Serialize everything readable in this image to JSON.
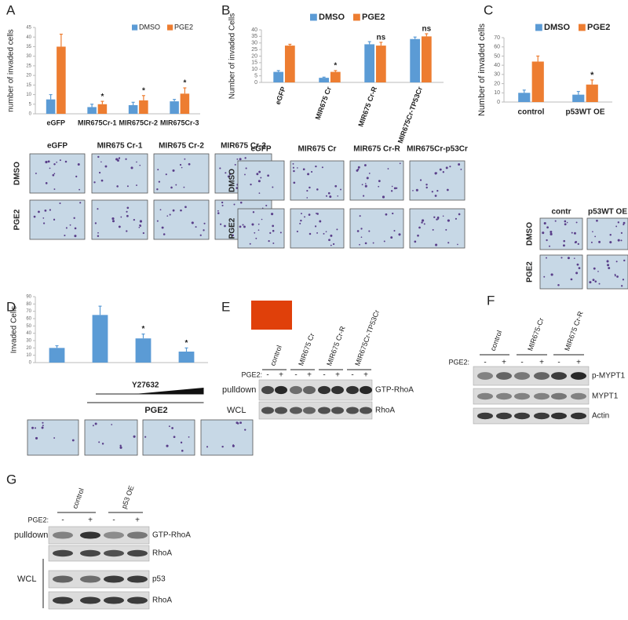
{
  "panel_letters": [
    "A",
    "B",
    "C",
    "D",
    "E",
    "F",
    "G"
  ],
  "chart_data": [
    {
      "type": "bar",
      "y_label": "number of invaded cells",
      "categories": [
        "eGFP",
        "MIR675Cr-1",
        "MIR675Cr-2",
        "MIR675Cr-3"
      ],
      "series": [
        {
          "name": "DMSO",
          "color": "#5b9bd5",
          "values": [
            7.5,
            3.5,
            4.5,
            6.5
          ],
          "errors": [
            2.5,
            1.5,
            1.5,
            1
          ]
        },
        {
          "name": "PGE2",
          "color": "#ed7d31",
          "values": [
            35,
            5,
            7,
            10.5
          ],
          "errors": [
            6.5,
            1.5,
            2.5,
            3
          ]
        }
      ],
      "significance": [
        null,
        "*",
        "*",
        "*"
      ],
      "ylim": [
        0,
        45
      ],
      "yticks": [
        0,
        5,
        10,
        15,
        20,
        25,
        30,
        35,
        40,
        45
      ],
      "grid": false,
      "legend": "top-right"
    },
    {
      "type": "bar",
      "y_label": "Number of invaded Cells",
      "categories": [
        "eGFP",
        "MIR675 Cr",
        "MIR675 Cr-R",
        "MIR675Cr-TP53Cr"
      ],
      "series": [
        {
          "name": "DMSO",
          "color": "#5b9bd5",
          "values": [
            8,
            3.5,
            29,
            33
          ],
          "errors": [
            1,
            0.5,
            2,
            1.5
          ]
        },
        {
          "name": "PGE2",
          "color": "#ed7d31",
          "values": [
            28,
            8,
            28,
            35
          ],
          "errors": [
            1,
            1,
            2.5,
            2
          ]
        }
      ],
      "significance": [
        null,
        "*",
        "ns",
        "ns"
      ],
      "ylim": [
        0,
        40
      ],
      "yticks": [
        0,
        5,
        10,
        15,
        20,
        25,
        30,
        35,
        40
      ],
      "grid": false,
      "legend": "top"
    },
    {
      "type": "bar",
      "y_label": "Number of invaded cells",
      "categories": [
        "control",
        "p53WT OE"
      ],
      "series": [
        {
          "name": "DMSO",
          "color": "#5b9bd5",
          "values": [
            10,
            8
          ],
          "errors": [
            3,
            3.5
          ]
        },
        {
          "name": "PGE2",
          "color": "#ed7d31",
          "values": [
            44,
            19
          ],
          "errors": [
            6,
            5
          ]
        }
      ],
      "significance": [
        null,
        "*"
      ],
      "ylim": [
        0,
        70
      ],
      "yticks": [
        0,
        10,
        20,
        30,
        40,
        50,
        60,
        70
      ],
      "grid": false,
      "legend": "top"
    },
    {
      "type": "bar",
      "y_label": "Invaded Cells",
      "categories": [
        null,
        null,
        null,
        null
      ],
      "values": [
        20,
        65,
        33,
        15
      ],
      "errors": [
        3,
        12,
        6,
        5
      ],
      "color": "#5b9bd5",
      "significance": [
        null,
        null,
        "*",
        "*"
      ],
      "group_label": "PGE2",
      "gradient_label": "Y27632",
      "ylim": [
        0,
        90
      ],
      "yticks": [
        0,
        10,
        20,
        30,
        40,
        50,
        60,
        70,
        80,
        90
      ],
      "grid": false
    }
  ],
  "micrographs": {
    "A": {
      "columns": [
        "eGFP",
        "MIR675 Cr-1",
        "MIR675 Cr-2",
        "MIR675 Cr-3"
      ],
      "rows": [
        "DMSO",
        "PGE2"
      ]
    },
    "B": {
      "columns": [
        "eGFP",
        "MIR675 Cr",
        "MIR675 Cr-R",
        "MIR675Cr-p53Cr"
      ],
      "rows": [
        "DMSO",
        "PGE2"
      ]
    },
    "C": {
      "columns": [
        "contr",
        "p53WT OE"
      ],
      "rows": [
        "DMSO",
        "PGE2"
      ]
    }
  },
  "blots": {
    "E": {
      "columns": [
        "control",
        "MIR675 Cr",
        "MIR675 Cr-R",
        "MIR675Cr-TP53Cr"
      ],
      "treatment_label": "PGE2:",
      "treatment_signs": [
        "-",
        "+",
        "-",
        "+",
        "-",
        "+",
        "-",
        "+"
      ],
      "row_labels": [
        "pulldown",
        "WCL"
      ],
      "band_labels": [
        "GTP-RhoA",
        "RhoA"
      ]
    },
    "F": {
      "columns": [
        "control",
        "MIR675-Cr",
        "MIR675 Cr-R"
      ],
      "treatment_label": "PGE2:",
      "treatment_signs": [
        "-",
        "+",
        "-",
        "+",
        "-",
        "+"
      ],
      "band_labels": [
        "p-MYPT1",
        "MYPT1",
        "Actin"
      ]
    },
    "G": {
      "columns": [
        "control",
        "p53 OE"
      ],
      "treatment_label": "PGE2:",
      "treatment_signs": [
        "-",
        "+",
        "-",
        "+"
      ],
      "row_labels": [
        "pulldown",
        "WCL"
      ],
      "band_labels": [
        "GTP-RhoA",
        "RhoA",
        "p53",
        "RhoA"
      ]
    }
  }
}
